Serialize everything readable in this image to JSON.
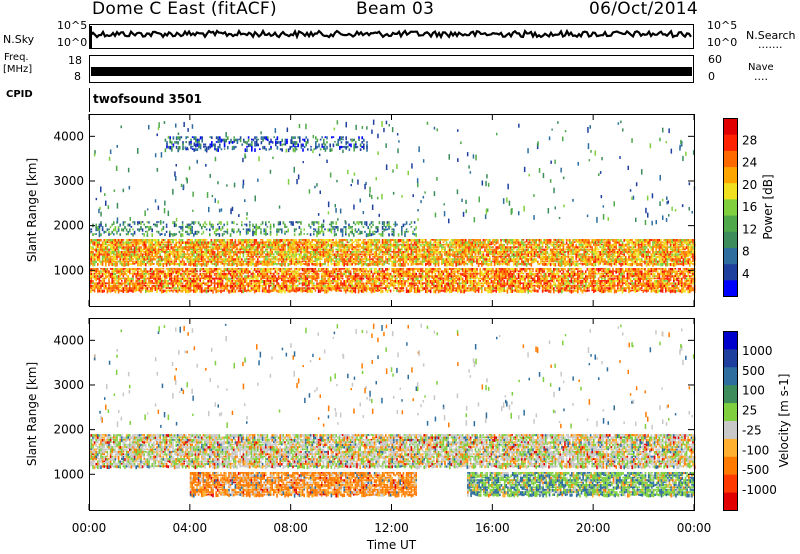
{
  "header": {
    "station": "Dome C East (fitACF)",
    "beam": "Beam 03",
    "date": "06/Oct/2014"
  },
  "strips": {
    "nsky_label": "N.Sky",
    "nsky_ticks": [
      "10^5",
      "10^0"
    ],
    "nsearch_label": "N.Search",
    "nsearch_dots": ".......",
    "freq_label_1": "Freq.",
    "freq_label_2": "[MHz]",
    "freq_ticks": [
      "18",
      "8"
    ],
    "nave_label": "Nave",
    "nave_ticks": [
      "60",
      "0"
    ],
    "nave_dots": "....",
    "cpid_label": "CPID",
    "cpid_value": "twofsound 3501"
  },
  "colors": {
    "power": [
      "#0000ff",
      "#1f3f9f",
      "#2e6e9e",
      "#3c8c5c",
      "#4fa84a",
      "#7fcf3f",
      "#f0e020",
      "#ffa500",
      "#ff6a00",
      "#ff2200",
      "#e00000"
    ],
    "velocity": [
      "#e00000",
      "#ff3a00",
      "#ff7a00",
      "#ffb030",
      "#c8c8c8",
      "#7fcf3f",
      "#3c8c5c",
      "#2e6e9e",
      "#1f3f9f",
      "#0000cc"
    ]
  },
  "chart_data": [
    {
      "type": "heatmap",
      "title": "Power",
      "xlabel": "Time UT",
      "ylabel": "Slant Range [km]",
      "x_ticks": [
        "00:00",
        "04:00",
        "08:00",
        "12:00",
        "16:00",
        "20:00",
        "00:00"
      ],
      "y_ticks": [
        1000,
        2000,
        3000,
        4000
      ],
      "ylim": [
        200,
        4500
      ],
      "xlim_hours": [
        0,
        24
      ],
      "colorbar": {
        "label": "Power [dB]",
        "ticks": [
          4,
          8,
          12,
          16,
          20,
          24,
          28
        ],
        "range": [
          0,
          32
        ]
      },
      "bands": [
        {
          "range_km": [
            550,
            1050
          ],
          "power_db": 24,
          "hours": [
            0,
            24
          ]
        },
        {
          "range_km": [
            1150,
            1700
          ],
          "power_db": 22,
          "hours": [
            0,
            24
          ]
        },
        {
          "range_km": [
            1800,
            2100
          ],
          "power_db": 10,
          "hours": [
            0,
            13
          ]
        },
        {
          "range_km": [
            3700,
            4000
          ],
          "power_db": 6,
          "hours": [
            3,
            11
          ]
        }
      ]
    },
    {
      "type": "heatmap",
      "title": "Velocity",
      "xlabel": "Time UT",
      "ylabel": "Slant Range [km]",
      "x_ticks": [
        "00:00",
        "04:00",
        "08:00",
        "12:00",
        "16:00",
        "20:00",
        "00:00"
      ],
      "y_ticks": [
        1000,
        2000,
        3000,
        4000
      ],
      "ylim": [
        200,
        4500
      ],
      "xlim_hours": [
        0,
        24
      ],
      "colorbar": {
        "label": "Velocity [m s-1]",
        "ticks": [
          "1000",
          "500",
          "100",
          "25",
          "-25",
          "-100",
          "-500",
          "-1000"
        ]
      },
      "bands": [
        {
          "range_km": [
            550,
            1050
          ],
          "velocity": -100,
          "hours": [
            4,
            13
          ]
        },
        {
          "range_km": [
            550,
            1050
          ],
          "velocity": 100,
          "hours": [
            15,
            24
          ]
        },
        {
          "range_km": [
            1150,
            1900
          ],
          "velocity": 0,
          "hours": [
            0,
            24
          ]
        }
      ]
    }
  ]
}
